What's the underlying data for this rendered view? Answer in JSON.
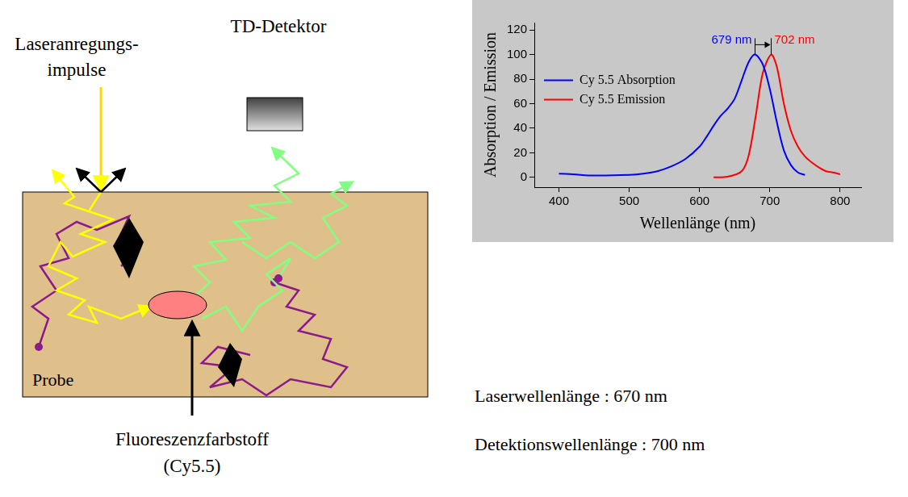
{
  "diagram": {
    "laser": [
      "Laseranregungs-",
      "impulse"
    ],
    "detector": "TD-Detektor",
    "sample": "Probe",
    "dye": [
      "Fluoreszenzfarbstoff",
      "(Cy5.5)"
    ]
  },
  "chart_data": {
    "type": "line",
    "x_label": "Wellenlänge (nm)",
    "y_label": "Absorption / Emission",
    "xlim": [
      365,
      830
    ],
    "xticks": [
      400,
      500,
      600,
      700,
      800
    ],
    "ylim": [
      -8,
      126
    ],
    "yticks": [
      0,
      20,
      40,
      60,
      80,
      100,
      120
    ],
    "grid": false,
    "legend": "center left",
    "series": [
      {
        "name": "Cy 5.5 Absorption",
        "color": "#0000ff",
        "x": [
          400,
          420,
          450,
          500,
          520,
          540,
          560,
          580,
          600,
          610,
          620,
          630,
          640,
          650,
          660,
          670,
          679,
          690,
          700,
          710,
          720,
          730,
          740,
          750
        ],
        "values": [
          3,
          2.5,
          1.5,
          2,
          3,
          5,
          9,
          15,
          25,
          33,
          42,
          50,
          56,
          64,
          79,
          94,
          100,
          92,
          72,
          45,
          22,
          10,
          4,
          2
        ]
      },
      {
        "name": "Cy 5.5 Emission",
        "color": "#ff0000",
        "x": [
          620,
          640,
          660,
          670,
          680,
          690,
          702,
          710,
          720,
          730,
          740,
          750,
          760,
          770,
          780,
          790,
          800
        ],
        "values": [
          0,
          0.5,
          5,
          18,
          50,
          85,
          100,
          90,
          60,
          38,
          25,
          17,
          12,
          8,
          5,
          4,
          2.5
        ]
      }
    ],
    "annotations": [
      {
        "text": "679 nm",
        "x": 679,
        "y": 108,
        "color": "#0000ff"
      },
      {
        "text": "702 nm",
        "x": 702,
        "y": 108,
        "color": "#ff0000"
      }
    ]
  },
  "notes": [
    "Laserwellenlänge : 670 nm",
    "Detektionswellenlänge : 700 nm"
  ]
}
